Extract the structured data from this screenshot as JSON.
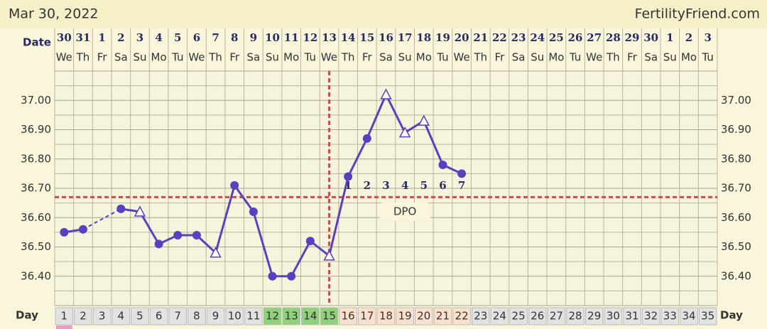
{
  "chart_data": {
    "type": "line",
    "title": "Mar 30, 2022",
    "site": "FertilityFriend.com",
    "date_label": "Date",
    "day_label": "Day",
    "dpo_label": "DPO",
    "categories": [
      1,
      2,
      3,
      4,
      5,
      6,
      7,
      8,
      9,
      10,
      11,
      12,
      13,
      14,
      15,
      16,
      17,
      18,
      19,
      20,
      21,
      22,
      23,
      24,
      25,
      26,
      27,
      28,
      29,
      30,
      31,
      32,
      33,
      34,
      35
    ],
    "dates": [
      30,
      31,
      1,
      2,
      3,
      4,
      5,
      6,
      7,
      8,
      9,
      10,
      11,
      12,
      13,
      14,
      15,
      16,
      17,
      18,
      19,
      20,
      21,
      22,
      23,
      24,
      25,
      26,
      27,
      28,
      29,
      30,
      1,
      2,
      3
    ],
    "weekdays": [
      "We",
      "Th",
      "Fr",
      "Sa",
      "Su",
      "Mo",
      "Tu",
      "We",
      "Th",
      "Fr",
      "Sa",
      "Su",
      "Mo",
      "Tu",
      "We",
      "Th",
      "Fr",
      "Sa",
      "Su",
      "Mo",
      "Tu",
      "We",
      "Th",
      "Fr",
      "Sa",
      "Su",
      "Mo",
      "Tu",
      "We",
      "Th",
      "Fr",
      "Sa",
      "Su",
      "Mo",
      "Tu"
    ],
    "values": [
      36.55,
      36.56,
      null,
      36.63,
      36.62,
      36.51,
      36.54,
      36.54,
      36.48,
      36.71,
      36.62,
      36.4,
      36.4,
      36.52,
      36.47,
      36.74,
      36.87,
      37.02,
      36.89,
      36.93,
      36.78,
      36.75,
      null,
      null,
      null,
      null,
      null,
      null,
      null,
      null,
      null,
      null,
      null,
      null,
      null
    ],
    "markers": [
      "dot",
      "dot",
      null,
      "dot",
      "triangle",
      "dot",
      "dot",
      "dot",
      "triangle",
      "dot",
      "dot",
      "dot",
      "dot",
      "dot",
      "triangle",
      "dot",
      "dot",
      "triangle",
      "triangle",
      "triangle",
      "dot",
      "dot",
      null,
      null,
      null,
      null,
      null,
      null,
      null,
      null,
      null,
      null,
      null,
      null,
      null
    ],
    "dpo": [
      null,
      null,
      null,
      null,
      null,
      null,
      null,
      null,
      null,
      null,
      null,
      null,
      null,
      null,
      null,
      1,
      2,
      3,
      4,
      5,
      6,
      7,
      null,
      null,
      null,
      null,
      null,
      null,
      null,
      null,
      null,
      null,
      null,
      null,
      null
    ],
    "day_colors": [
      "#e2e2e2",
      "#e2e2e2",
      "#e2e2e2",
      "#e2e2e2",
      "#e2e2e2",
      "#e2e2e2",
      "#e2e2e2",
      "#e2e2e2",
      "#e2e2e2",
      "#e2e2e2",
      "#e2e2e2",
      "#8fd27a",
      "#8fd27a",
      "#8fd27a",
      "#8fd27a",
      "#fbe1cc",
      "#fbe1cc",
      "#fbe1cc",
      "#fbe1cc",
      "#fbe1cc",
      "#fbe1cc",
      "#fbe1cc",
      "#e2e2e2",
      "#e2e2e2",
      "#e2e2e2",
      "#e2e2e2",
      "#e2e2e2",
      "#e2e2e2",
      "#e2e2e2",
      "#e2e2e2",
      "#e2e2e2",
      "#e2e2e2",
      "#e2e2e2",
      "#e2e2e2",
      "#e2e2e2"
    ],
    "color": "#5a3fc0",
    "coverline": 36.67,
    "ovulation_day": 15,
    "line_color_marker": "#c9504a",
    "ylim": [
      36.3,
      37.1
    ],
    "yticks": [
      {
        "value": 36.4,
        "label": "36.40"
      },
      {
        "value": 36.5,
        "label": "36.50"
      },
      {
        "value": 36.6,
        "label": "36.60"
      },
      {
        "value": 36.7,
        "label": "36.70"
      },
      {
        "value": 36.8,
        "label": "36.80"
      },
      {
        "value": 36.9,
        "label": "36.90"
      },
      {
        "value": 37.0,
        "label": "37.00"
      }
    ],
    "minor_yticks": [
      36.35,
      36.45,
      36.55,
      36.65,
      36.75,
      36.85,
      36.95,
      37.05
    ],
    "grid": true
  }
}
